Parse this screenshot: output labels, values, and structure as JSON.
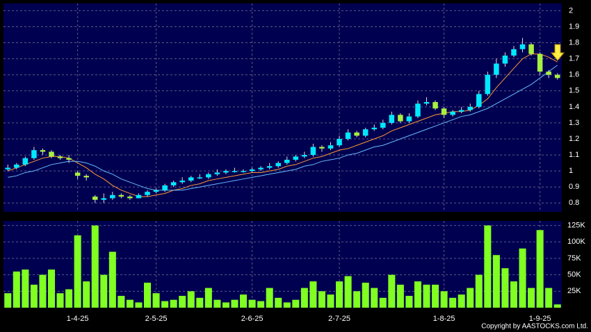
{
  "chart_data": {
    "type": "candlestick",
    "categories": [
      null,
      null,
      null,
      null,
      null,
      null,
      null,
      null,
      "1-4-25",
      null,
      null,
      null,
      null,
      null,
      null,
      null,
      null,
      "2-5-25",
      null,
      null,
      null,
      null,
      null,
      null,
      null,
      null,
      null,
      null,
      "2-6-25",
      null,
      null,
      null,
      null,
      null,
      null,
      null,
      null,
      null,
      "2-7-25",
      null,
      null,
      null,
      null,
      null,
      null,
      null,
      null,
      null,
      null,
      null,
      "1-8-25",
      null,
      null,
      null,
      null,
      null,
      null,
      null,
      null,
      null,
      null,
      "1-9-25",
      null,
      null
    ],
    "open": [
      1.01,
      1.02,
      1.04,
      1.08,
      1.13,
      1.12,
      1.09,
      1.08,
      0.99,
      0.97,
      0.84,
      0.82,
      0.83,
      0.85,
      0.84,
      0.83,
      0.85,
      0.87,
      0.88,
      0.91,
      0.93,
      0.94,
      0.96,
      0.96,
      0.98,
      0.99,
      1.0,
      1.0,
      1.0,
      1.01,
      1.02,
      1.03,
      1.05,
      1.07,
      1.09,
      1.1,
      1.15,
      1.14,
      1.16,
      1.2,
      1.24,
      1.22,
      1.26,
      1.27,
      1.3,
      1.35,
      1.31,
      1.34,
      1.42,
      1.43,
      1.39,
      1.35,
      1.37,
      1.38,
      1.4,
      1.48,
      1.6,
      1.67,
      1.72,
      1.76,
      1.79,
      1.73,
      1.62,
      1.6
    ],
    "high": [
      1.04,
      1.05,
      1.09,
      1.15,
      1.14,
      1.13,
      1.1,
      1.1,
      1.0,
      0.98,
      0.85,
      0.86,
      0.87,
      0.86,
      0.85,
      0.86,
      0.88,
      0.89,
      0.92,
      0.94,
      0.96,
      0.97,
      0.98,
      0.99,
      1.01,
      1.01,
      1.02,
      1.01,
      1.02,
      1.03,
      1.05,
      1.06,
      1.09,
      1.1,
      1.12,
      1.17,
      1.16,
      1.18,
      1.22,
      1.26,
      1.25,
      1.27,
      1.29,
      1.32,
      1.37,
      1.36,
      1.36,
      1.44,
      1.46,
      1.44,
      1.4,
      1.38,
      1.4,
      1.42,
      1.5,
      1.62,
      1.7,
      1.74,
      1.78,
      1.83,
      1.8,
      1.74,
      1.63,
      1.61
    ],
    "low": [
      1.0,
      1.01,
      1.03,
      1.07,
      1.1,
      1.08,
      1.07,
      1.05,
      0.95,
      0.94,
      0.8,
      0.8,
      0.82,
      0.83,
      0.82,
      0.83,
      0.84,
      0.86,
      0.87,
      0.9,
      0.92,
      0.93,
      0.95,
      0.95,
      0.97,
      0.98,
      0.99,
      0.99,
      0.99,
      1.0,
      1.01,
      1.02,
      1.04,
      1.06,
      1.08,
      1.09,
      1.12,
      1.13,
      1.15,
      1.19,
      1.21,
      1.21,
      1.25,
      1.26,
      1.29,
      1.3,
      1.3,
      1.33,
      1.41,
      1.38,
      1.33,
      1.34,
      1.36,
      1.37,
      1.39,
      1.47,
      1.58,
      1.65,
      1.71,
      1.74,
      1.72,
      1.6,
      1.58,
      1.57
    ],
    "close": [
      1.02,
      1.04,
      1.08,
      1.13,
      1.12,
      1.09,
      1.08,
      1.07,
      0.97,
      0.96,
      0.82,
      0.83,
      0.85,
      0.84,
      0.83,
      0.85,
      0.87,
      0.88,
      0.91,
      0.93,
      0.94,
      0.96,
      0.96,
      0.98,
      0.99,
      1.0,
      1.0,
      1.0,
      1.01,
      1.02,
      1.03,
      1.05,
      1.07,
      1.09,
      1.1,
      1.15,
      1.14,
      1.16,
      1.2,
      1.24,
      1.22,
      1.26,
      1.27,
      1.3,
      1.35,
      1.31,
      1.34,
      1.42,
      1.43,
      1.39,
      1.35,
      1.37,
      1.38,
      1.4,
      1.48,
      1.6,
      1.67,
      1.72,
      1.76,
      1.79,
      1.73,
      1.62,
      1.6,
      1.58
    ],
    "up_color": "#00e8ff",
    "down_color": "#a8f040",
    "ma_lines": [
      {
        "color": "#ff9933",
        "values": [
          1.0,
          1.02,
          1.04,
          1.06,
          1.08,
          1.09,
          1.09,
          1.08,
          1.05,
          1.02,
          0.98,
          0.95,
          0.91,
          0.88,
          0.86,
          0.84,
          0.84,
          0.85,
          0.86,
          0.88,
          0.89,
          0.91,
          0.92,
          0.94,
          0.95,
          0.96,
          0.97,
          0.98,
          0.99,
          0.99,
          1.0,
          1.01,
          1.03,
          1.04,
          1.06,
          1.08,
          1.09,
          1.11,
          1.13,
          1.14,
          1.16,
          1.18,
          1.2,
          1.22,
          1.25,
          1.27,
          1.29,
          1.31,
          1.33,
          1.35,
          1.36,
          1.37,
          1.37,
          1.38,
          1.41,
          1.45,
          1.52,
          1.58,
          1.64,
          1.7,
          1.73,
          1.73,
          1.71,
          1.68
        ]
      },
      {
        "color": "#66bbff",
        "values": [
          0.96,
          0.97,
          0.99,
          1.0,
          1.02,
          1.04,
          1.05,
          1.06,
          1.06,
          1.05,
          1.03,
          1.0,
          0.98,
          0.95,
          0.93,
          0.91,
          0.89,
          0.88,
          0.88,
          0.88,
          0.88,
          0.89,
          0.9,
          0.91,
          0.92,
          0.93,
          0.94,
          0.95,
          0.96,
          0.97,
          0.98,
          0.99,
          1.0,
          1.01,
          1.03,
          1.04,
          1.06,
          1.07,
          1.08,
          1.1,
          1.11,
          1.13,
          1.15,
          1.16,
          1.18,
          1.2,
          1.22,
          1.24,
          1.26,
          1.28,
          1.3,
          1.32,
          1.34,
          1.35,
          1.37,
          1.39,
          1.42,
          1.45,
          1.48,
          1.51,
          1.54,
          1.58,
          1.62,
          1.66
        ]
      }
    ],
    "ylim": [
      0.745,
      2.045
    ],
    "yticks": [
      0.8,
      0.9,
      1,
      1.1,
      1.2,
      1.3,
      1.4,
      1.5,
      1.6,
      1.7,
      1.8,
      1.9,
      2
    ],
    "grid": true,
    "volume": {
      "color": "#80ff20",
      "values": [
        22000,
        55000,
        58000,
        35000,
        50000,
        58000,
        22000,
        28000,
        110000,
        40000,
        125000,
        50000,
        85000,
        18000,
        12000,
        8000,
        38000,
        22000,
        10000,
        12000,
        18000,
        25000,
        15000,
        30000,
        12000,
        8000,
        12000,
        20000,
        12000,
        10000,
        30000,
        15000,
        8000,
        12000,
        30000,
        40000,
        25000,
        20000,
        40000,
        48000,
        25000,
        38000,
        30000,
        15000,
        50000,
        35000,
        18000,
        40000,
        35000,
        35000,
        25000,
        15000,
        20000,
        30000,
        50000,
        125000,
        80000,
        60000,
        40000,
        90000,
        30000,
        118000,
        30000,
        5000
      ],
      "ylim": [
        0,
        132000
      ],
      "yticks": [
        {
          "value": 25000,
          "label": "25K"
        },
        {
          "value": 50000,
          "label": "50K"
        },
        {
          "value": 75000,
          "label": "75K"
        },
        {
          "value": 100000,
          "label": "100K"
        },
        {
          "value": 125000,
          "label": "125K"
        }
      ]
    },
    "copyright": "Copyright by AASTOCKS.com Ltd."
  }
}
